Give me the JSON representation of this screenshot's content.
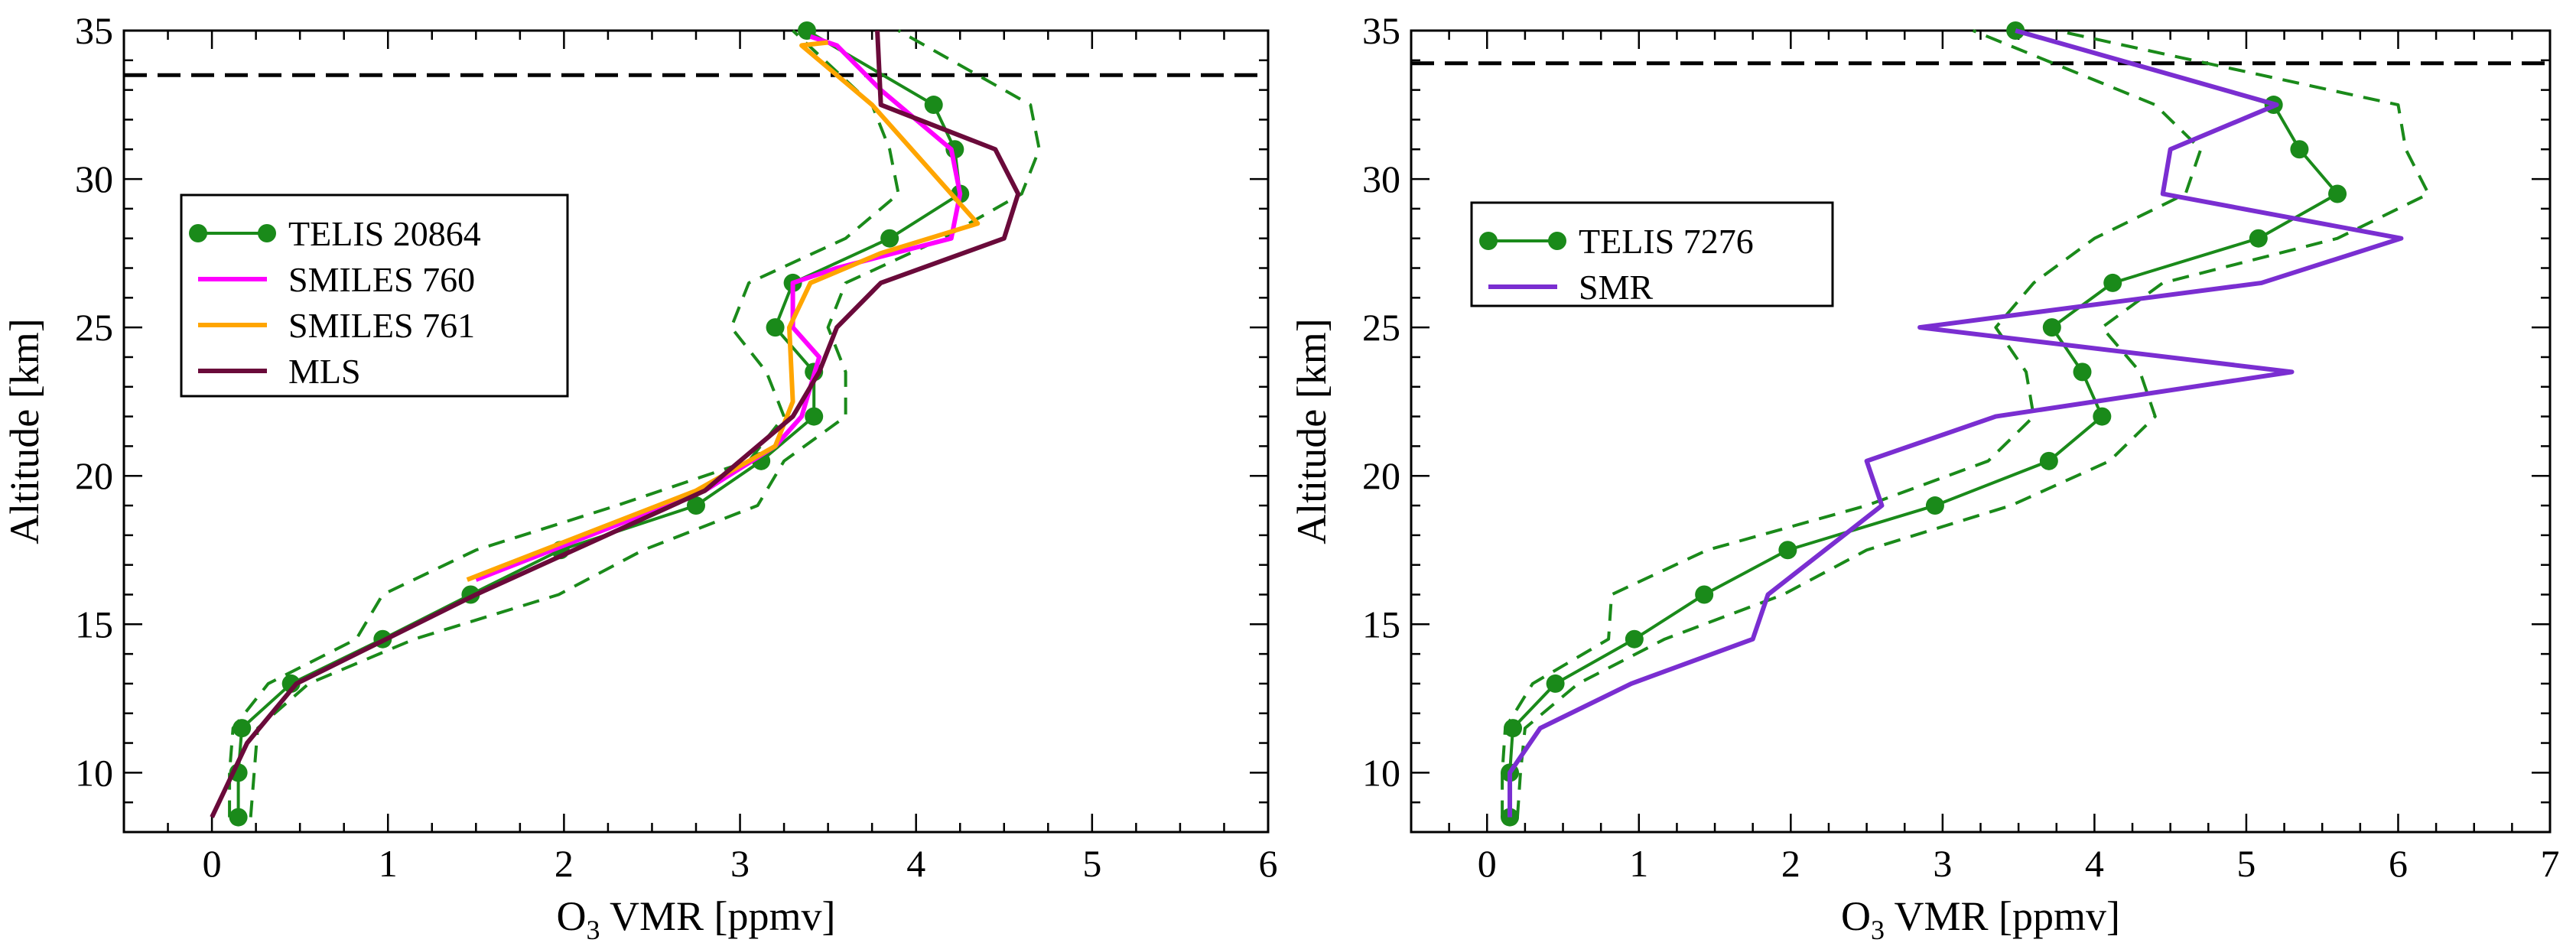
{
  "colors": {
    "telis": "#1a8a1a",
    "smiles760": "#ff00ff",
    "smiles761": "#ffa500",
    "mls": "#6a0a3a",
    "smr": "#7a2ed1",
    "axis": "#000000"
  },
  "chart_data": [
    {
      "type": "line",
      "title": "",
      "xlabel": "VMR [ppmv]",
      "xlabel_species": "O",
      "xlabel_sub": "3",
      "ylabel": "Altitude [km]",
      "xlim": [
        -0.5,
        6
      ],
      "ylim": [
        8,
        35
      ],
      "xticks": [
        0,
        1,
        2,
        3,
        4,
        5,
        6
      ],
      "xtick_labels": [
        "0",
        "1",
        "2",
        "3",
        "4",
        "5",
        "6"
      ],
      "yticks": [
        10,
        15,
        20,
        25,
        30,
        35
      ],
      "ytick_labels": [
        "10",
        "15",
        "20",
        "25",
        "30",
        "35"
      ],
      "ref_line_altitude": 33.5,
      "legend": [
        "TELIS 20864",
        "SMILES 760",
        "SMILES 761",
        "MLS"
      ],
      "series": [
        {
          "name": "TELIS 20864",
          "color_key": "telis",
          "style": "line-dots",
          "x": [
            0.15,
            0.15,
            0.17,
            0.45,
            0.97,
            1.47,
            1.98,
            2.75,
            3.12,
            3.42,
            3.42,
            3.2,
            3.3,
            3.85,
            4.25,
            4.22,
            4.1,
            3.38
          ],
          "y": [
            8.5,
            10,
            11.5,
            13,
            14.5,
            16,
            17.5,
            19,
            20.5,
            22,
            23.5,
            25,
            26.5,
            28,
            29.5,
            31,
            32.5,
            35
          ]
        },
        {
          "name": "TELIS 20864 lower bound",
          "color_key": "telis",
          "style": "dashed",
          "x": [
            0.1,
            0.1,
            0.12,
            0.32,
            0.82,
            0.97,
            1.5,
            2.3,
            3.05,
            3.25,
            3.15,
            2.95,
            3.05,
            3.6,
            3.9,
            3.85,
            3.75,
            3.3
          ],
          "y": [
            8.5,
            10,
            11.5,
            13,
            14.5,
            16,
            17.5,
            19,
            20.5,
            22,
            23.5,
            25,
            26.5,
            28,
            29.5,
            31,
            32.5,
            35
          ]
        },
        {
          "name": "TELIS 20864 upper bound",
          "color_key": "telis",
          "style": "dashed",
          "x": [
            0.22,
            0.24,
            0.26,
            0.55,
            1.15,
            1.97,
            2.45,
            3.1,
            3.25,
            3.6,
            3.6,
            3.5,
            3.6,
            4.15,
            4.6,
            4.7,
            4.65,
            3.9
          ],
          "y": [
            8.5,
            10,
            11.5,
            13,
            14.5,
            16,
            17.5,
            19,
            20.5,
            22,
            23.5,
            25,
            26.5,
            28,
            29.5,
            31,
            32.5,
            35
          ]
        },
        {
          "name": "SMILES 760",
          "color_key": "smiles760",
          "style": "line",
          "x": [
            1.5,
            2.8,
            3.2,
            3.35,
            3.45,
            3.3,
            3.3,
            3.55,
            4.2,
            4.25,
            4.2,
            3.8,
            3.55,
            3.4
          ],
          "y": [
            16.5,
            19.5,
            21,
            22,
            24,
            25,
            26.5,
            27,
            28,
            29.5,
            31,
            33,
            34.5,
            34.8
          ]
        },
        {
          "name": "SMILES 761",
          "color_key": "smiles761",
          "style": "line",
          "x": [
            1.45,
            2.75,
            3.2,
            3.3,
            3.28,
            3.4,
            3.8,
            4.35,
            4.05,
            3.75,
            3.35,
            3.5
          ],
          "y": [
            16.5,
            19.5,
            21,
            22.5,
            25,
            26.5,
            27.5,
            28.5,
            30.5,
            32.5,
            34.5,
            34.6
          ]
        },
        {
          "name": "MLS",
          "color_key": "mls",
          "style": "line",
          "x": [
            0,
            0.2,
            0.48,
            1.5,
            2.8,
            3.3,
            3.45,
            3.55,
            3.8,
            4.5,
            4.58,
            4.45,
            3.8,
            3.78
          ],
          "y": [
            8.5,
            11,
            13,
            16,
            19.5,
            22,
            23.5,
            25,
            26.5,
            28,
            29.5,
            31,
            32.5,
            35
          ]
        }
      ]
    },
    {
      "type": "line",
      "title": "",
      "xlabel": "VMR [ppmv]",
      "xlabel_species": "O",
      "xlabel_sub": "3",
      "ylabel": "Altitude [km]",
      "xlim": [
        -0.5,
        7
      ],
      "ylim": [
        8,
        35
      ],
      "xticks": [
        0,
        1,
        2,
        3,
        4,
        5,
        6,
        7
      ],
      "xtick_labels": [
        "0",
        "1",
        "2",
        "3",
        "4",
        "5",
        "6",
        "7"
      ],
      "yticks": [
        10,
        15,
        20,
        25,
        30,
        35
      ],
      "ytick_labels": [
        "10",
        "15",
        "20",
        "25",
        "30",
        "35"
      ],
      "ref_line_altitude": 33.9,
      "legend": [
        "TELIS 7276",
        "SMR"
      ],
      "series": [
        {
          "name": "TELIS 7276",
          "color_key": "telis",
          "style": "line-dots",
          "x": [
            0.15,
            0.15,
            0.17,
            0.45,
            0.97,
            1.43,
            1.98,
            2.95,
            3.7,
            4.05,
            3.92,
            3.72,
            4.12,
            5.08,
            5.6,
            5.35,
            5.18,
            3.48
          ],
          "y": [
            8.5,
            10,
            11.5,
            13,
            14.5,
            16,
            17.5,
            19,
            20.5,
            22,
            23.5,
            25,
            26.5,
            28,
            29.5,
            31,
            32.5,
            35
          ]
        },
        {
          "name": "TELIS 7276 lower bound",
          "color_key": "telis",
          "style": "dashed",
          "x": [
            0.1,
            0.1,
            0.12,
            0.3,
            0.8,
            0.82,
            1.45,
            2.5,
            3.3,
            3.6,
            3.55,
            3.35,
            3.6,
            4.0,
            4.6,
            4.7,
            4.4,
            3.2
          ],
          "y": [
            8.5,
            10,
            11.5,
            13,
            14.5,
            16,
            17.5,
            19,
            20.5,
            22,
            23.5,
            25,
            26.5,
            28,
            29.5,
            31,
            32.5,
            35
          ]
        },
        {
          "name": "TELIS 7276 upper bound",
          "color_key": "telis",
          "style": "dashed",
          "x": [
            0.2,
            0.22,
            0.25,
            0.6,
            1.17,
            1.95,
            2.5,
            3.45,
            4.1,
            4.4,
            4.3,
            4.05,
            4.45,
            5.6,
            6.2,
            6.05,
            6.0,
            3.75
          ],
          "y": [
            8.5,
            10,
            11.5,
            13,
            14.5,
            16,
            17.5,
            19,
            20.5,
            22,
            23.5,
            25,
            26.5,
            28,
            29.5,
            31,
            32.5,
            35
          ]
        },
        {
          "name": "SMR",
          "color_key": "smr",
          "style": "line",
          "x": [
            0.15,
            0.15,
            0.35,
            0.95,
            1.75,
            1.85,
            2.35,
            2.6,
            2.5,
            3.35,
            5.3,
            2.85,
            5.1,
            6.02,
            4.45,
            4.5,
            5.2,
            3.48
          ],
          "y": [
            8.5,
            10,
            11.5,
            13,
            14.5,
            16,
            18,
            19,
            20.5,
            22,
            23.5,
            25,
            26.5,
            28,
            29.5,
            31,
            32.5,
            35
          ]
        }
      ]
    }
  ]
}
